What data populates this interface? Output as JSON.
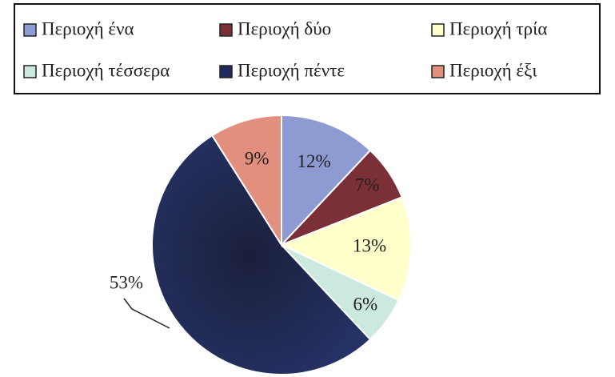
{
  "chart_data": {
    "type": "pie",
    "categories": [
      "Περιοχή ένα",
      "Περιοχή δύο",
      "Περιοχή τρία",
      "Περιοχή τέσσερα",
      "Περιοχή πέντε",
      "Περιοχή έξι"
    ],
    "values": [
      12,
      7,
      13,
      6,
      53,
      9
    ],
    "value_labels": [
      "12%",
      "7%",
      "13%",
      "6%",
      "53%",
      "9%"
    ],
    "colors": [
      "#8e9ad2",
      "#7b3038",
      "#ffffcc",
      "#cce9e0",
      "#1f2a5e",
      "#e38f7e"
    ],
    "legend": "top"
  }
}
